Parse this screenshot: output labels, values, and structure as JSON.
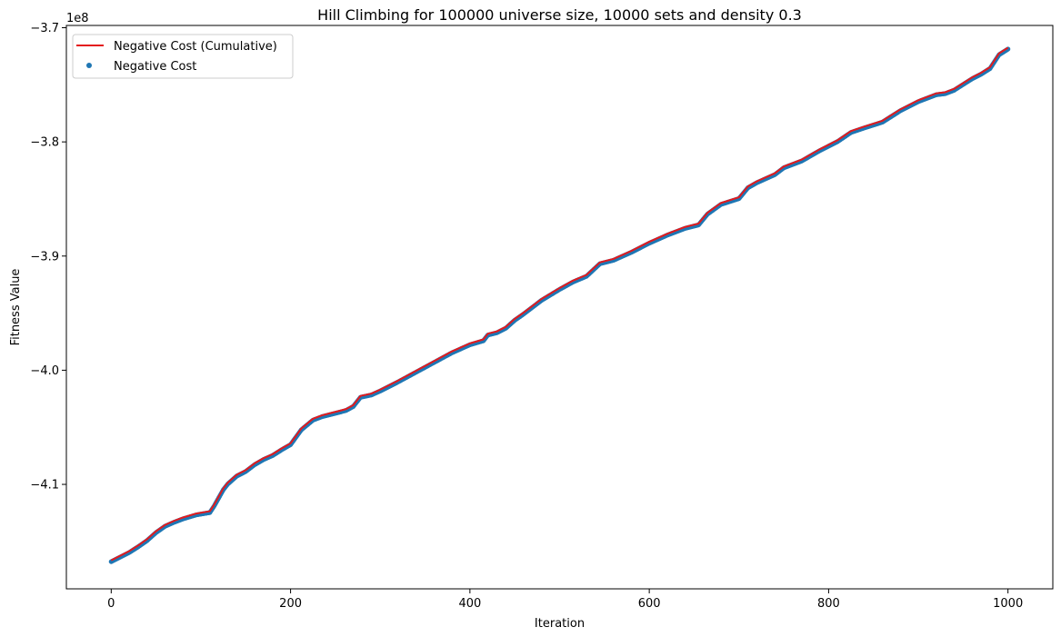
{
  "chart_data": {
    "type": "line",
    "title": "Hill Climbing for 100000 universe size, 10000 sets and density 0.3",
    "xlabel": "Iteration",
    "ylabel": "Fitness Value",
    "y_offset_label": "1e8",
    "y_scale": 100000000,
    "xlim": [
      -50,
      1050
    ],
    "ylim": [
      -4.1915,
      -3.698
    ],
    "x_ticks": [
      0,
      200,
      400,
      600,
      800,
      1000
    ],
    "x_tick_labels": [
      "0",
      "200",
      "400",
      "600",
      "800",
      "1000"
    ],
    "y_ticks": [
      -4.1,
      -4.0,
      -3.9,
      -3.8,
      -3.7
    ],
    "y_tick_labels": [
      "−4.1",
      "−4.0",
      "−3.9",
      "−3.8",
      "−3.7"
    ],
    "grid": false,
    "legend_position": "top-left",
    "colors": {
      "line": "#e41a1c",
      "scatter": "#1f77b4"
    },
    "series": [
      {
        "name": "Negative Cost (Cumulative)",
        "kind": "line",
        "x": [
          0,
          20,
          30,
          40,
          50,
          60,
          70,
          80,
          95,
          110,
          115,
          125,
          130,
          140,
          150,
          160,
          170,
          180,
          190,
          200,
          212,
          225,
          235,
          245,
          255,
          262,
          270,
          278,
          290,
          300,
          320,
          340,
          360,
          380,
          400,
          415,
          420,
          430,
          440,
          450,
          460,
          480,
          500,
          515,
          530,
          545,
          560,
          580,
          600,
          620,
          640,
          655,
          665,
          680,
          700,
          710,
          720,
          740,
          750,
          770,
          790,
          810,
          825,
          840,
          860,
          880,
          900,
          920,
          930,
          940,
          960,
          970,
          980,
          990,
          1000
        ],
        "y": [
          -4.1665,
          -4.1585,
          -4.1535,
          -4.148,
          -4.141,
          -4.1355,
          -4.132,
          -4.129,
          -4.1255,
          -4.1235,
          -4.1175,
          -4.1035,
          -4.0985,
          -4.0915,
          -4.0875,
          -4.0815,
          -4.077,
          -4.0735,
          -4.0685,
          -4.064,
          -4.051,
          -4.0425,
          -4.0395,
          -4.0375,
          -4.0355,
          -4.034,
          -4.0305,
          -4.0225,
          -4.0205,
          -4.017,
          -4.009,
          -4.0005,
          -3.992,
          -3.9835,
          -3.9765,
          -3.973,
          -3.968,
          -3.966,
          -3.962,
          -3.955,
          -3.9495,
          -3.9375,
          -3.928,
          -3.9215,
          -3.9165,
          -3.9055,
          -3.9025,
          -3.8955,
          -3.8875,
          -3.8805,
          -3.8745,
          -3.8715,
          -3.862,
          -3.8535,
          -3.8485,
          -3.839,
          -3.8345,
          -3.8275,
          -3.8215,
          -3.8155,
          -3.8065,
          -3.7985,
          -3.7905,
          -3.7865,
          -3.7815,
          -3.7715,
          -3.7635,
          -3.7575,
          -3.7565,
          -3.7535,
          -3.7435,
          -3.7395,
          -3.7345,
          -3.7225,
          -3.7175
        ]
      },
      {
        "name": "Negative Cost",
        "kind": "scatter"
      }
    ]
  }
}
